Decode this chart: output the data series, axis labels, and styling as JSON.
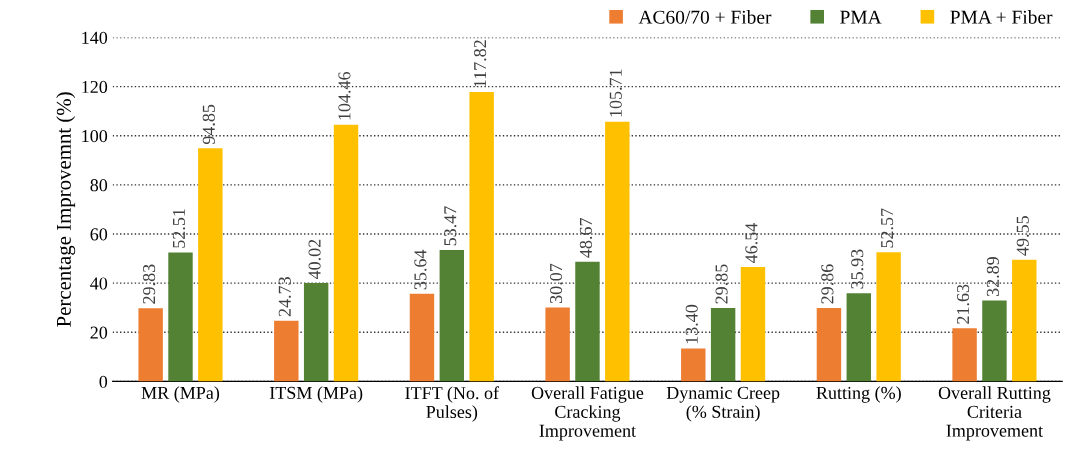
{
  "chart_data": {
    "type": "bar",
    "ylabel": "Percentage Improvemnt (%)",
    "categories": [
      "MR (MPa)",
      "ITSM (MPa)",
      "ITFT (No. of\nPulses)",
      "Overall Fatigue\nCracking\nImprovement",
      "Dynamic Creep\n(% Strain)",
      "Rutting (%)",
      "Overall Rutting\nCriteria\nImprovement"
    ],
    "series": [
      {
        "name": "AC60/70 + Fiber",
        "color": "#ed7d31",
        "values": [
          29.83,
          24.73,
          35.64,
          30.07,
          13.4,
          29.86,
          21.63
        ],
        "value_labels": [
          "29.83",
          "24.73",
          "35.64",
          "30.07",
          "13.40",
          "29.86",
          "21.63"
        ]
      },
      {
        "name": "PMA",
        "color": "#548235",
        "values": [
          52.51,
          40.02,
          53.47,
          48.67,
          29.85,
          35.93,
          32.89
        ],
        "value_labels": [
          "52.51",
          "40.02",
          "53.47",
          "48.67",
          "29.85",
          "35.93",
          "32.89"
        ]
      },
      {
        "name": "PMA + Fiber",
        "color": "#ffc000",
        "values": [
          94.85,
          104.46,
          117.82,
          105.71,
          46.54,
          52.57,
          49.55
        ],
        "value_labels": [
          "94.85",
          "104.46",
          "117.82",
          "105.71",
          "46.54",
          "52.57",
          "49.55"
        ]
      }
    ],
    "ylim": [
      0,
      140
    ],
    "yticks": [
      0,
      20,
      40,
      60,
      80,
      100,
      120,
      140
    ],
    "grid": "y",
    "legend": "top right"
  }
}
